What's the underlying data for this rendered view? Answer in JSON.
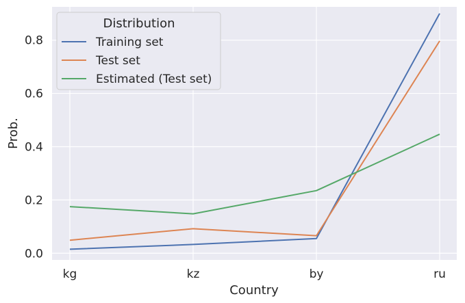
{
  "chart_data": {
    "type": "line",
    "categories": [
      "kg",
      "kz",
      "by",
      "ru"
    ],
    "xlabel": "Country",
    "ylabel": "Prob.",
    "ylim": [
      -0.025,
      0.925
    ],
    "yticks": [
      "0.0",
      "0.2",
      "0.4",
      "0.6",
      "0.8"
    ],
    "grid": true,
    "legend": {
      "title": "Distribution",
      "placement": "top-left"
    },
    "series": [
      {
        "name": "Training set",
        "color": "#4c72b0",
        "values": [
          0.015,
          0.033,
          0.055,
          0.9
        ]
      },
      {
        "name": "Test set",
        "color": "#dd8452",
        "values": [
          0.049,
          0.092,
          0.066,
          0.797
        ]
      },
      {
        "name": "Estimated (Test set)",
        "color": "#55a868",
        "values": [
          0.175,
          0.148,
          0.235,
          0.447
        ]
      }
    ]
  }
}
